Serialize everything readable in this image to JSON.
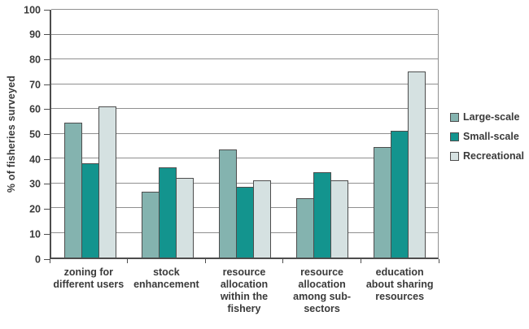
{
  "chart_data": {
    "type": "bar",
    "title": "",
    "xlabel": "",
    "ylabel": "% of fisheries surveyed",
    "ylim": [
      0,
      100
    ],
    "yticks": [
      0,
      10,
      20,
      30,
      40,
      50,
      60,
      70,
      80,
      90,
      100
    ],
    "grid": true,
    "legend_position": "right",
    "categories": [
      "zoning for different users",
      "stock enhancement",
      "resource allocation within the fishery",
      "resource allocation among sub-sectors",
      "education about sharing resources"
    ],
    "category_lines": [
      [
        "zoning for",
        "different users"
      ],
      [
        "stock",
        "enhancement"
      ],
      [
        "resource",
        "allocation",
        "within the",
        "fishery"
      ],
      [
        "resource",
        "allocation",
        "among sub-",
        "sectors"
      ],
      [
        "education",
        "about sharing",
        "resources"
      ]
    ],
    "series": [
      {
        "name": "Large-scale",
        "color": "#84b3af",
        "values": [
          54.5,
          26.5,
          43.5,
          24.0,
          44.5
        ]
      },
      {
        "name": "Small-scale",
        "color": "#13948e",
        "values": [
          38.0,
          36.5,
          28.5,
          34.5,
          51.0
        ]
      },
      {
        "name": "Recreational",
        "color": "#d5e1e1",
        "values": [
          61.0,
          32.0,
          31.0,
          31.0,
          75.0
        ]
      }
    ],
    "colors": {
      "axis": "#4d4d4d",
      "gridline": "#8f8f8f",
      "bar_border": "#4d4d4d",
      "text": "#3a3a3a",
      "background": "#ffffff"
    }
  }
}
